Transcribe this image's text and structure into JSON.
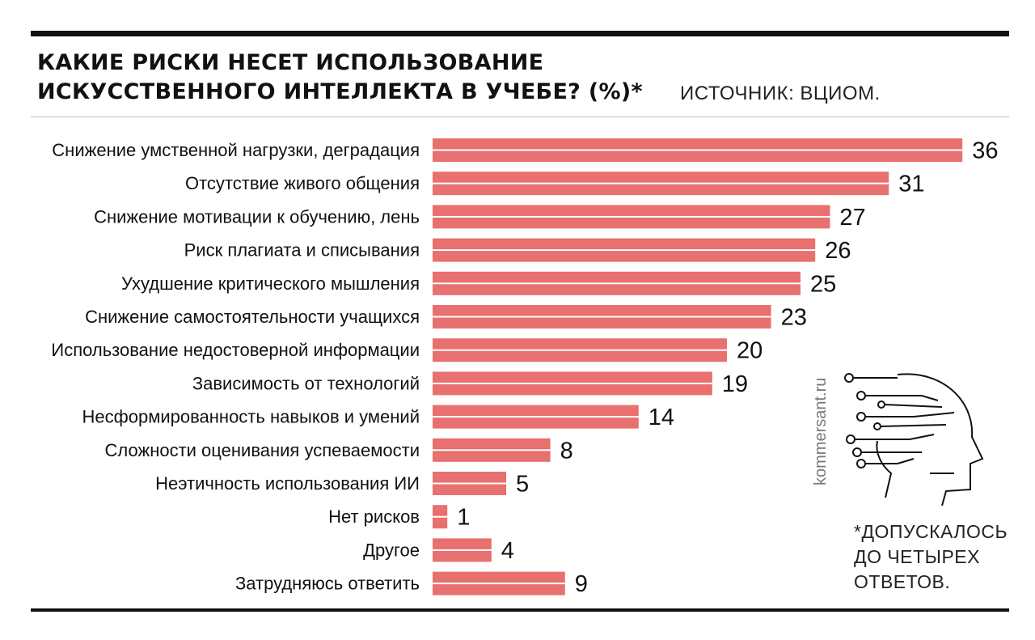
{
  "title_lines": [
    "КАКИЕ РИСКИ НЕСЕТ ИСПОЛЬЗОВАНИЕ",
    "ИСКУССТВЕННОГО ИНТЕЛЛЕКТА В УЧЕБЕ? (%)*"
  ],
  "source": "ИСТОЧНИК: ВЦИОМ.",
  "footnote_lines": [
    "*ДОПУСКАЛОСЬ",
    "ДО ЧЕТЫРЕХ",
    "ОТВЕТОВ."
  ],
  "watermark": "kommersant.ru",
  "colors": {
    "bar": "#e8706f",
    "text": "#111111",
    "rule": "#111111"
  },
  "icon": "ai-head-circuit-icon",
  "chart_data": {
    "type": "bar",
    "orientation": "horizontal",
    "title": "КАКИЕ РИСКИ НЕСЕТ ИСПОЛЬЗОВАНИЕ ИСКУССТВЕННОГО ИНТЕЛЛЕКТА В УЧЕБЕ? (%)*",
    "categories": [
      "Снижение умственной нагрузки, деградация",
      "Отсутствие живого общения",
      "Снижение мотивации к обучению, лень",
      "Риск плагиата и списывания",
      "Ухудшение критического мышления",
      "Снижение самостоятельности учащихся",
      "Использование недостоверной информации",
      "Зависимость от технологий",
      "Несформированность навыков и умений",
      "Сложности оценивания успеваемости",
      "Неэтичность использования ИИ",
      "Нет рисков",
      "Другое",
      "Затрудняюсь ответить"
    ],
    "values": [
      36,
      31,
      27,
      26,
      25,
      23,
      20,
      19,
      14,
      8,
      5,
      1,
      4,
      9
    ],
    "value_labels": [
      "36",
      "31",
      "27",
      "26",
      "25",
      "23",
      "20",
      "19",
      "14",
      "8",
      "5",
      "1",
      "4",
      "9"
    ],
    "xlabel": "",
    "ylabel": "",
    "xlim": [
      0,
      36
    ],
    "grid": false,
    "legend": "none"
  }
}
